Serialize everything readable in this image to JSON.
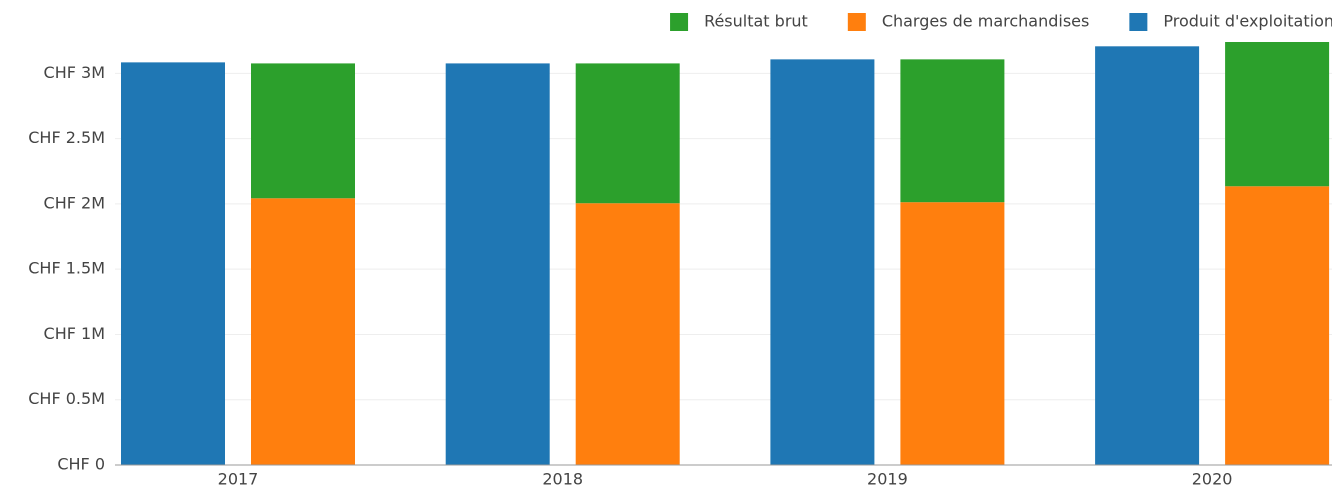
{
  "chart_data": {
    "type": "bar",
    "categories": [
      "2017",
      "2018",
      "2019",
      "2020"
    ],
    "series": [
      {
        "name": "Produit d'exploitation",
        "color": "#1f77b4",
        "stack": 0,
        "values": [
          3084000,
          3076000,
          3107000,
          3207000
        ]
      },
      {
        "name": "Charges de marchandises",
        "color": "#ff7f0e",
        "stack": 1,
        "values": [
          2043000,
          2005000,
          2013000,
          2135000
        ]
      },
      {
        "name": "Résultat brut",
        "color": "#2ca02c",
        "stack": 1,
        "values": [
          1033000,
          1071000,
          1094000,
          1120000
        ]
      }
    ],
    "ylim": [
      0,
      3240000
    ],
    "yticks": [
      {
        "value": 0,
        "label": "CHF 0"
      },
      {
        "value": 500000,
        "label": "CHF 0.5M"
      },
      {
        "value": 1000000,
        "label": "CHF 1M"
      },
      {
        "value": 1500000,
        "label": "CHF 1.5M"
      },
      {
        "value": 2000000,
        "label": "CHF 2M"
      },
      {
        "value": 2500000,
        "label": "CHF 2.5M"
      },
      {
        "value": 3000000,
        "label": "CHF 3M"
      }
    ],
    "grid": true,
    "legend": "top-right"
  }
}
